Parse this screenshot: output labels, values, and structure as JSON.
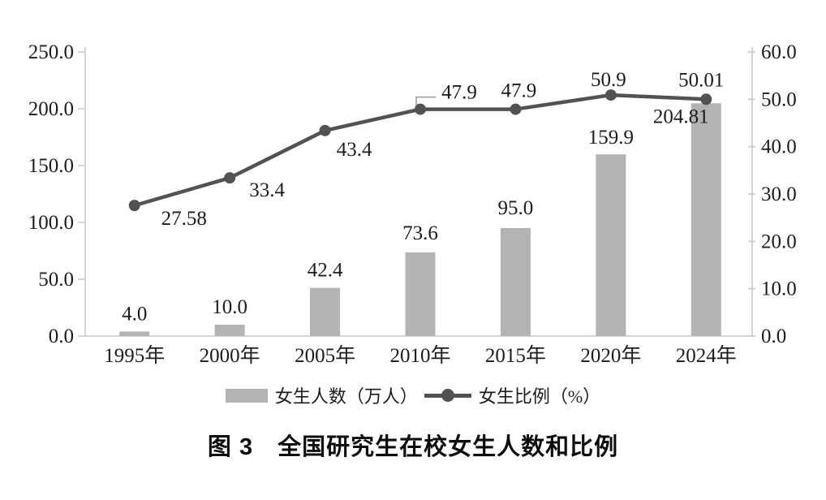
{
  "figure": {
    "caption": "图 3　全国研究生在校女生人数和比例"
  },
  "chart_data": {
    "type": "bar",
    "subtype": "bar+line combo, dual y-axes",
    "categories": [
      "1995年",
      "2000年",
      "2005年",
      "2010年",
      "2015年",
      "2020年",
      "2024年"
    ],
    "series": [
      {
        "name": "女生人数（万人）",
        "type": "bar",
        "axis": "left",
        "values": [
          4.0,
          10.0,
          42.4,
          73.6,
          95.0,
          159.9,
          204.81
        ],
        "labels": [
          "4.0",
          "10.0",
          "42.4",
          "73.6",
          "95.0",
          "159.9",
          "204.81"
        ],
        "label_offsets": [
          [
            0,
            -14
          ],
          [
            0,
            -14
          ],
          [
            0,
            -14
          ],
          [
            0,
            -16
          ],
          [
            0,
            -17
          ],
          [
            0,
            -13
          ],
          [
            -31,
            24
          ]
        ],
        "color": "#b3b3b3"
      },
      {
        "name": "女生比例（%）",
        "type": "line",
        "axis": "right",
        "values": [
          27.58,
          33.4,
          43.4,
          47.9,
          47.9,
          50.9,
          50.01
        ],
        "labels": [
          "27.58",
          "33.4",
          "43.4",
          "47.9",
          "47.9",
          "50.9",
          "50.01"
        ],
        "label_offsets": [
          [
            61,
            24
          ],
          [
            46,
            23
          ],
          [
            36,
            31
          ],
          [
            48,
            -13
          ],
          [
            4,
            -15
          ],
          [
            -3,
            -11
          ],
          [
            -6,
            -16
          ]
        ],
        "leader_index": 3,
        "color": "#525252"
      }
    ],
    "left_axis": {
      "ticks": [
        "0.0",
        "50.0",
        "100.0",
        "150.0",
        "200.0",
        "250.0"
      ],
      "min": 0,
      "max": 250
    },
    "right_axis": {
      "ticks": [
        "0.0",
        "10.0",
        "20.0",
        "30.0",
        "40.0",
        "50.0",
        "60.0"
      ],
      "min": 0,
      "max": 60
    },
    "grid": false,
    "legend_position": "bottom",
    "axis_color": "#c9c9c9",
    "text_color": "#1c1c1c",
    "title": "图 3　全国研究生在校女生人数和比例"
  }
}
